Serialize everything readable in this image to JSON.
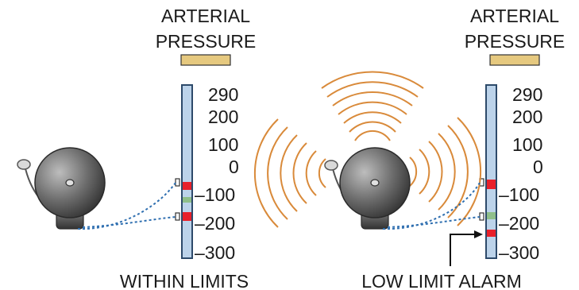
{
  "panels": [
    {
      "gauge_title": [
        "ARTERIAL",
        "PRESSURE"
      ],
      "scale_labels": [
        "290",
        "200",
        "100",
        "0",
        "–100",
        "–200",
        "–300"
      ],
      "caption": "WITHIN LIMITS",
      "alarm_sounding": false,
      "pressure_indicator": "between limits"
    },
    {
      "gauge_title": [
        "ARTERIAL",
        "PRESSURE"
      ],
      "scale_labels": [
        "290",
        "200",
        "100",
        "0",
        "–100",
        "–200",
        "–300"
      ],
      "caption": "LOW LIMIT ALARM",
      "alarm_sounding": true,
      "pressure_indicator": "below low limit"
    }
  ],
  "colors": {
    "gauge_fill": "#bcd3ea",
    "gauge_stroke": "#2d4a6a",
    "title_bar": "#e6c97f",
    "limit_marker": "#e8202a",
    "pressure_marker": "#8fbf8a",
    "sound_waves": "#d98a3a",
    "wire": "#2f6fb0",
    "bell_dark": "#3a3a3a",
    "bell_light": "#9a9a9a"
  }
}
